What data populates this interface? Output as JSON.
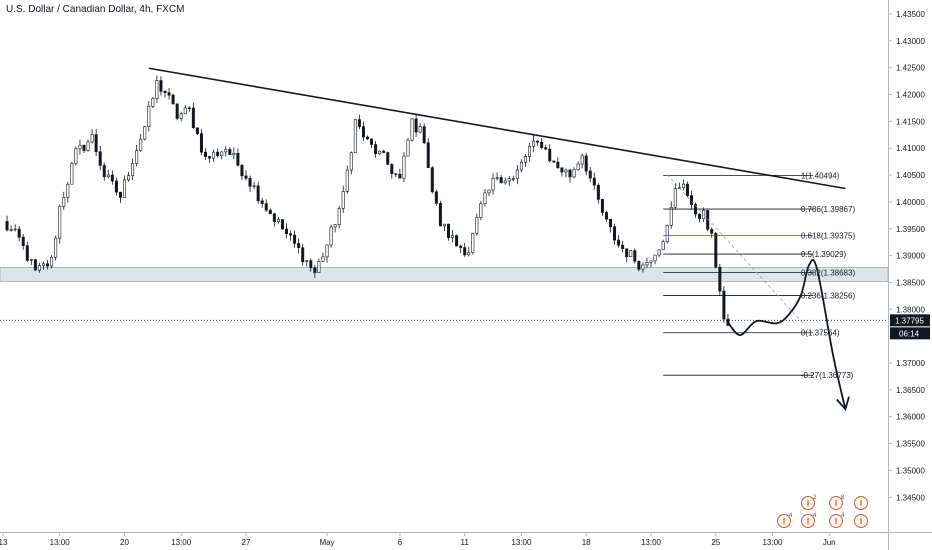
{
  "header": {
    "title": "U.S. Dollar / Canadian Dollar, 4h, FXCM"
  },
  "colors": {
    "candle": "#131722",
    "background": "#ffffff",
    "axis_line": "#b2b5be",
    "support_zone_fill": "#e0e3e8",
    "support_zone_border": "#8c8f96",
    "fib_line": "#131722",
    "fib_highlight_line": "#3a57a8",
    "current_price_tag": "#131722",
    "countdown_tag": "#131722",
    "event_icon": "#c0643c"
  },
  "icons": [
    "event-flag-icon"
  ],
  "events": [
    {
      "label": "2",
      "row": "top"
    },
    {
      "label": "8",
      "row": "top"
    },
    {
      "label": "",
      "row": "top"
    },
    {
      "label": "4",
      "row": "bottom"
    },
    {
      "label": "4",
      "row": "bottom"
    },
    {
      "label": "4",
      "row": "bottom"
    },
    {
      "label": "",
      "row": "bottom"
    }
  ],
  "chart_data": {
    "type": "candlestick",
    "title": "U.S. Dollar / Canadian Dollar, 4h, FXCM",
    "symbol": "USDCAD",
    "timeframe": "4h",
    "source": "FXCM",
    "ylim": [
      1.3405,
      1.4375
    ],
    "y_ticks": [
      "1.43500",
      "1.43000",
      "1.42500",
      "1.42000",
      "1.41500",
      "1.41000",
      "1.40500",
      "1.40000",
      "1.39500",
      "1.39000",
      "1.38500",
      "1.38000",
      "1.37500",
      "1.37000",
      "1.36500",
      "1.36000",
      "1.35500",
      "1.35000",
      "1.34500"
    ],
    "x_ticks": [
      "13",
      "13:00",
      "20",
      "13:00",
      "27",
      "May",
      "6",
      "11",
      "13:00",
      "18",
      "13:00",
      "25",
      "13:00",
      "Jun"
    ],
    "x_tick_index": [
      0,
      14,
      30,
      44,
      60,
      80,
      98,
      114,
      128,
      144,
      160,
      176,
      190,
      204
    ],
    "bars_total": 215,
    "current_price": "1.37795",
    "countdown": "06:14",
    "support_zone": [
      1.3852,
      1.3878
    ],
    "trendline": {
      "start": {
        "i": 36,
        "price": 1.4249
      },
      "end": {
        "i": 208,
        "price": 1.4025
      }
    },
    "fib_retracement": {
      "start_i": 163,
      "end_i": 200,
      "label_i": 197,
      "levels": [
        {
          "label": "1(1.40494)",
          "price": 1.40494
        },
        {
          "label": "0.786(1.39867)",
          "price": 1.39867
        },
        {
          "label": "0.618(1.39375)",
          "price": 1.39375
        },
        {
          "label": "0.5(1.39029)",
          "price": 1.39029
        },
        {
          "label": "0.382(1.38683)",
          "price": 1.38683
        },
        {
          "label": "0.236(1.38256)",
          "price": 1.38256
        },
        {
          "label": "0(1.37564)",
          "price": 1.37564
        },
        {
          "label": "-0.27(1.36773)",
          "price": 1.36773
        }
      ]
    },
    "forecast_path": [
      {
        "i": 179,
        "price": 1.3776
      },
      {
        "i": 182,
        "price": 1.3752
      },
      {
        "i": 186,
        "price": 1.3778
      },
      {
        "i": 191,
        "price": 1.3774
      },
      {
        "i": 194,
        "price": 1.379
      },
      {
        "i": 197,
        "price": 1.3826
      },
      {
        "i": 199,
        "price": 1.3882
      },
      {
        "i": 201,
        "price": 1.3875
      },
      {
        "i": 205,
        "price": 1.3713
      },
      {
        "i": 208,
        "price": 1.3614
      }
    ],
    "projection_dashed": {
      "start": {
        "i": 164,
        "price": 1.4051
      },
      "end": {
        "i": 198,
        "price": 1.377
      }
    },
    "anchors": [
      {
        "i": 0,
        "price": 1.396
      },
      {
        "i": 4,
        "price": 1.393
      },
      {
        "i": 8,
        "price": 1.3868
      },
      {
        "i": 12,
        "price": 1.389
      },
      {
        "i": 14,
        "price": 1.399
      },
      {
        "i": 18,
        "price": 1.409
      },
      {
        "i": 22,
        "price": 1.412
      },
      {
        "i": 25,
        "price": 1.405
      },
      {
        "i": 29,
        "price": 1.401
      },
      {
        "i": 32,
        "price": 1.408
      },
      {
        "i": 35,
        "price": 1.414
      },
      {
        "i": 38,
        "price": 1.422
      },
      {
        "i": 40,
        "price": 1.4205
      },
      {
        "i": 43,
        "price": 1.416
      },
      {
        "i": 46,
        "price": 1.417
      },
      {
        "i": 50,
        "price": 1.408
      },
      {
        "i": 55,
        "price": 1.41
      },
      {
        "i": 60,
        "price": 1.405
      },
      {
        "i": 65,
        "price": 1.399
      },
      {
        "i": 70,
        "price": 1.394
      },
      {
        "i": 74,
        "price": 1.39
      },
      {
        "i": 77,
        "price": 1.3868
      },
      {
        "i": 80,
        "price": 1.392
      },
      {
        "i": 84,
        "price": 1.401
      },
      {
        "i": 87,
        "price": 1.415
      },
      {
        "i": 90,
        "price": 1.411
      },
      {
        "i": 94,
        "price": 1.408
      },
      {
        "i": 98,
        "price": 1.404
      },
      {
        "i": 101,
        "price": 1.415
      },
      {
        "i": 104,
        "price": 1.412
      },
      {
        "i": 106,
        "price": 1.402
      },
      {
        "i": 108,
        "price": 1.396
      },
      {
        "i": 112,
        "price": 1.392
      },
      {
        "i": 115,
        "price": 1.391
      },
      {
        "i": 118,
        "price": 1.399
      },
      {
        "i": 122,
        "price": 1.405
      },
      {
        "i": 126,
        "price": 1.404
      },
      {
        "i": 130,
        "price": 1.41
      },
      {
        "i": 133,
        "price": 1.411
      },
      {
        "i": 136,
        "price": 1.407
      },
      {
        "i": 140,
        "price": 1.405
      },
      {
        "i": 143,
        "price": 1.409
      },
      {
        "i": 146,
        "price": 1.402
      },
      {
        "i": 149,
        "price": 1.396
      },
      {
        "i": 152,
        "price": 1.392
      },
      {
        "i": 155,
        "price": 1.39
      },
      {
        "i": 158,
        "price": 1.388
      },
      {
        "i": 162,
        "price": 1.392
      },
      {
        "i": 164,
        "price": 1.395
      },
      {
        "i": 166,
        "price": 1.402
      },
      {
        "i": 168,
        "price": 1.404
      },
      {
        "i": 170,
        "price": 1.3985
      },
      {
        "i": 173,
        "price": 1.3975
      },
      {
        "i": 175,
        "price": 1.393
      },
      {
        "i": 177,
        "price": 1.384
      },
      {
        "i": 178,
        "price": 1.378
      },
      {
        "i": 179,
        "price": 1.377
      }
    ]
  }
}
